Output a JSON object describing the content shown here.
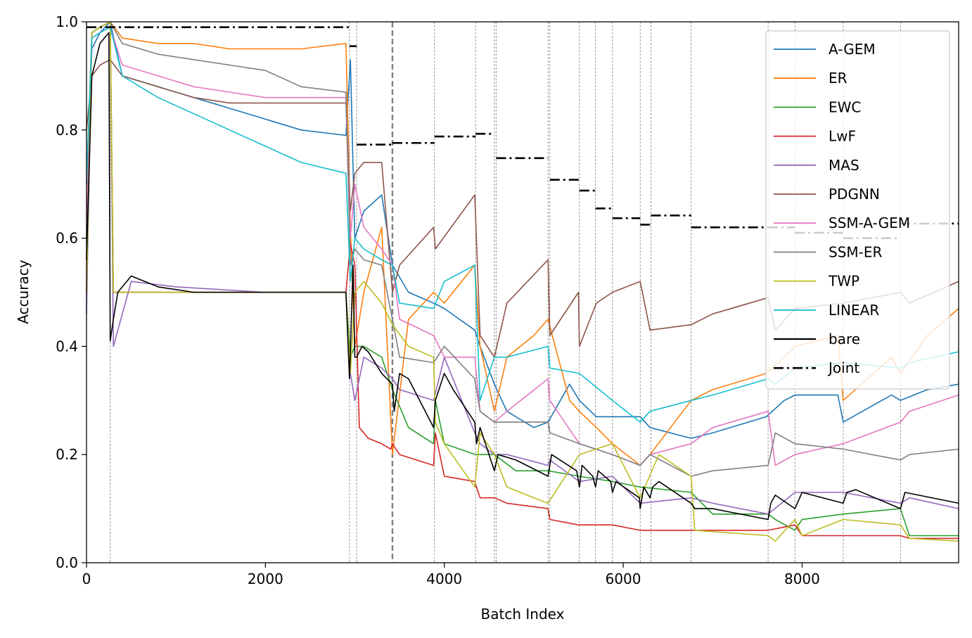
{
  "chart_data": {
    "type": "line",
    "title": "",
    "xlabel": "Batch Index",
    "ylabel": "Accuracy",
    "xlim": [
      0,
      9750
    ],
    "ylim": [
      0.0,
      1.0
    ],
    "xticks": [
      0,
      2000,
      4000,
      6000,
      8000
    ],
    "xtick_labels": [
      "0",
      "2000",
      "4000",
      "6000",
      "8000"
    ],
    "yticks": [
      0.0,
      0.2,
      0.4,
      0.6,
      0.8,
      1.0
    ],
    "ytick_labels": [
      "0.0",
      "0.2",
      "0.4",
      "0.6",
      "0.8",
      "1.0"
    ],
    "task_boundaries": [
      265,
      2940,
      3020,
      3890,
      4350,
      4560,
      4580,
      5160,
      5180,
      5510,
      5690,
      5880,
      6190,
      6310,
      6760,
      7620,
      7920,
      8460,
      9100
    ],
    "highlight_boundary": 3420,
    "legend_position": "upper right",
    "series": [
      {
        "name": "A-GEM",
        "color": "#1f77b4",
        "style": "solid",
        "x": [
          0,
          60,
          150,
          265,
          400,
          800,
          1200,
          1600,
          2000,
          2400,
          2900,
          2950,
          3000,
          3100,
          3300,
          3420,
          3600,
          3880,
          4000,
          4340,
          4400,
          4560,
          4700,
          5000,
          5160,
          5400,
          5510,
          5700,
          5880,
          6190,
          6300,
          6760,
          7000,
          7600,
          7800,
          7920,
          8400,
          8460,
          9000,
          9100,
          9400,
          9750
        ],
        "y": [
          0.6,
          0.95,
          0.98,
          1.0,
          0.9,
          0.88,
          0.86,
          0.84,
          0.82,
          0.8,
          0.79,
          0.93,
          0.6,
          0.65,
          0.68,
          0.55,
          0.5,
          0.48,
          0.47,
          0.43,
          0.4,
          0.33,
          0.28,
          0.25,
          0.26,
          0.33,
          0.3,
          0.27,
          0.27,
          0.27,
          0.25,
          0.23,
          0.24,
          0.27,
          0.3,
          0.31,
          0.31,
          0.26,
          0.31,
          0.3,
          0.32,
          0.33
        ]
      },
      {
        "name": "ER",
        "color": "#ff7f0e",
        "style": "solid",
        "x": [
          0,
          60,
          150,
          265,
          400,
          800,
          1200,
          1600,
          2000,
          2400,
          2900,
          2950,
          3000,
          3100,
          3300,
          3420,
          3600,
          3880,
          4000,
          4340,
          4400,
          4560,
          4700,
          5000,
          5160,
          5400,
          5510,
          5700,
          5880,
          6190,
          6300,
          6760,
          7000,
          7600,
          7800,
          7920,
          8400,
          8460,
          9000,
          9100,
          9400,
          9750
        ],
        "y": [
          0.6,
          0.98,
          0.99,
          1.0,
          0.97,
          0.96,
          0.96,
          0.95,
          0.95,
          0.95,
          0.96,
          0.62,
          0.4,
          0.5,
          0.62,
          0.2,
          0.45,
          0.5,
          0.48,
          0.55,
          0.4,
          0.28,
          0.38,
          0.42,
          0.45,
          0.3,
          0.28,
          0.25,
          0.22,
          0.18,
          0.2,
          0.3,
          0.32,
          0.35,
          0.38,
          0.4,
          0.42,
          0.3,
          0.38,
          0.35,
          0.42,
          0.47
        ]
      },
      {
        "name": "EWC",
        "color": "#2ca02c",
        "style": "solid",
        "x": [
          0,
          60,
          150,
          265,
          300,
          1000,
          2000,
          2900,
          2950,
          3000,
          3100,
          3300,
          3420,
          3600,
          3880,
          3900,
          4000,
          4350,
          4560,
          4800,
          5160,
          5510,
          5880,
          6190,
          6760,
          7000,
          7620,
          7700,
          7920,
          8000,
          8460,
          9100,
          9200,
          9750
        ],
        "y": [
          0.5,
          0.98,
          0.99,
          1.0,
          0.5,
          0.5,
          0.5,
          0.5,
          0.38,
          0.4,
          0.4,
          0.38,
          0.32,
          0.25,
          0.22,
          0.3,
          0.22,
          0.2,
          0.2,
          0.17,
          0.17,
          0.16,
          0.15,
          0.14,
          0.13,
          0.09,
          0.09,
          0.08,
          0.06,
          0.08,
          0.09,
          0.1,
          0.05,
          0.05
        ]
      },
      {
        "name": "LwF",
        "color": "#d62728",
        "style": "solid",
        "x": [
          0,
          60,
          150,
          265,
          300,
          1000,
          2000,
          2900,
          2950,
          3000,
          3050,
          3150,
          3300,
          3400,
          3420,
          3500,
          3880,
          3900,
          4000,
          4340,
          4400,
          4560,
          4700,
          5160,
          5180,
          5500,
          5700,
          5880,
          6190,
          6760,
          7620,
          7920,
          8000,
          8460,
          9100,
          9200,
          9750
        ],
        "y": [
          0.5,
          0.98,
          0.99,
          1.0,
          0.5,
          0.5,
          0.5,
          0.5,
          0.59,
          0.55,
          0.25,
          0.23,
          0.22,
          0.21,
          0.22,
          0.2,
          0.18,
          0.24,
          0.16,
          0.15,
          0.12,
          0.12,
          0.11,
          0.1,
          0.08,
          0.07,
          0.07,
          0.07,
          0.06,
          0.06,
          0.06,
          0.07,
          0.05,
          0.05,
          0.05,
          0.045,
          0.045
        ]
      },
      {
        "name": "MAS",
        "color": "#9467bd",
        "style": "solid",
        "x": [
          0,
          60,
          150,
          265,
          300,
          500,
          1000,
          2000,
          2900,
          2950,
          3000,
          3100,
          3300,
          3420,
          3500,
          3880,
          4000,
          4340,
          4400,
          4560,
          4700,
          5160,
          5180,
          5510,
          5880,
          6190,
          6760,
          7000,
          7620,
          7920,
          8460,
          9100,
          9200,
          9750
        ],
        "y": [
          0.46,
          0.98,
          0.99,
          1.0,
          0.4,
          0.52,
          0.51,
          0.5,
          0.5,
          0.35,
          0.3,
          0.38,
          0.36,
          0.34,
          0.32,
          0.3,
          0.38,
          0.24,
          0.22,
          0.2,
          0.2,
          0.18,
          0.19,
          0.15,
          0.16,
          0.11,
          0.12,
          0.11,
          0.09,
          0.13,
          0.13,
          0.11,
          0.12,
          0.1
        ]
      },
      {
        "name": "PDGNN",
        "color": "#8c564b",
        "style": "solid",
        "x": [
          0,
          60,
          150,
          265,
          400,
          800,
          1200,
          1600,
          2000,
          2400,
          2900,
          2950,
          3000,
          3100,
          3300,
          3420,
          3500,
          3880,
          3900,
          4340,
          4400,
          4560,
          4700,
          5160,
          5180,
          5500,
          5510,
          5700,
          5880,
          6190,
          6300,
          6760,
          7000,
          7620,
          7700,
          7920,
          8460,
          9100,
          9200,
          9750
        ],
        "y": [
          0.8,
          0.9,
          0.92,
          0.93,
          0.9,
          0.88,
          0.86,
          0.85,
          0.85,
          0.85,
          0.85,
          0.65,
          0.72,
          0.74,
          0.74,
          0.5,
          0.55,
          0.62,
          0.58,
          0.68,
          0.42,
          0.38,
          0.48,
          0.56,
          0.42,
          0.5,
          0.4,
          0.48,
          0.5,
          0.52,
          0.43,
          0.44,
          0.46,
          0.49,
          0.43,
          0.47,
          0.48,
          0.5,
          0.48,
          0.52
        ]
      },
      {
        "name": "SSM-A-GEM",
        "color": "#e377c2",
        "style": "solid",
        "x": [
          0,
          60,
          150,
          265,
          400,
          800,
          1200,
          1600,
          2000,
          2400,
          2900,
          2950,
          3000,
          3100,
          3300,
          3420,
          3500,
          3880,
          4000,
          4340,
          4400,
          4560,
          4700,
          5160,
          5180,
          5510,
          5880,
          6190,
          6300,
          6760,
          7000,
          7620,
          7700,
          7920,
          8460,
          9100,
          9200,
          9750
        ],
        "y": [
          0.6,
          0.97,
          0.98,
          0.99,
          0.92,
          0.9,
          0.88,
          0.87,
          0.86,
          0.86,
          0.86,
          0.6,
          0.7,
          0.62,
          0.58,
          0.55,
          0.45,
          0.42,
          0.38,
          0.38,
          0.28,
          0.26,
          0.28,
          0.34,
          0.3,
          0.22,
          0.2,
          0.18,
          0.2,
          0.22,
          0.25,
          0.28,
          0.18,
          0.2,
          0.22,
          0.26,
          0.28,
          0.31
        ]
      },
      {
        "name": "SSM-ER",
        "color": "#7f7f7f",
        "style": "solid",
        "x": [
          0,
          60,
          150,
          265,
          400,
          800,
          1200,
          1600,
          2000,
          2400,
          2900,
          2950,
          3000,
          3100,
          3300,
          3420,
          3500,
          3880,
          4000,
          4340,
          4400,
          4560,
          4700,
          5160,
          5180,
          5510,
          5880,
          6190,
          6300,
          6760,
          7000,
          7620,
          7700,
          7920,
          8460,
          9100,
          9200,
          9750
        ],
        "y": [
          0.7,
          0.98,
          0.99,
          1.0,
          0.96,
          0.94,
          0.93,
          0.92,
          0.91,
          0.88,
          0.87,
          0.55,
          0.58,
          0.56,
          0.55,
          0.45,
          0.38,
          0.37,
          0.4,
          0.34,
          0.28,
          0.26,
          0.26,
          0.26,
          0.24,
          0.22,
          0.2,
          0.18,
          0.2,
          0.16,
          0.17,
          0.18,
          0.24,
          0.22,
          0.21,
          0.19,
          0.2,
          0.21
        ]
      },
      {
        "name": "TWP",
        "color": "#bcbd22",
        "style": "solid",
        "x": [
          0,
          60,
          150,
          265,
          300,
          1000,
          2000,
          2900,
          2950,
          3000,
          3100,
          3300,
          3420,
          3600,
          3880,
          3900,
          4000,
          4340,
          4400,
          4560,
          4700,
          5000,
          5160,
          5510,
          5880,
          6190,
          6400,
          6760,
          6800,
          7620,
          7700,
          7920,
          8000,
          8460,
          9100,
          9200,
          9750
        ],
        "y": [
          0.5,
          0.98,
          0.99,
          1.0,
          0.5,
          0.5,
          0.5,
          0.5,
          0.35,
          0.5,
          0.52,
          0.48,
          0.44,
          0.4,
          0.38,
          0.26,
          0.22,
          0.14,
          0.24,
          0.2,
          0.14,
          0.12,
          0.11,
          0.2,
          0.22,
          0.12,
          0.2,
          0.16,
          0.06,
          0.05,
          0.04,
          0.08,
          0.05,
          0.08,
          0.07,
          0.045,
          0.04
        ]
      },
      {
        "name": "LINEAR",
        "color": "#17becf",
        "style": "solid",
        "x": [
          0,
          60,
          150,
          265,
          400,
          800,
          1200,
          1600,
          2000,
          2400,
          2900,
          2950,
          3000,
          3100,
          3300,
          3420,
          3500,
          3880,
          4000,
          4340,
          4400,
          4560,
          4700,
          5160,
          5180,
          5510,
          5880,
          6190,
          6300,
          6760,
          7000,
          7620,
          7700,
          7920,
          8460,
          9100,
          9200,
          9750
        ],
        "y": [
          0.7,
          0.97,
          0.98,
          0.99,
          0.9,
          0.86,
          0.83,
          0.8,
          0.77,
          0.74,
          0.72,
          0.52,
          0.6,
          0.58,
          0.56,
          0.55,
          0.48,
          0.47,
          0.52,
          0.55,
          0.3,
          0.38,
          0.38,
          0.4,
          0.36,
          0.35,
          0.3,
          0.26,
          0.28,
          0.3,
          0.31,
          0.34,
          0.33,
          0.36,
          0.37,
          0.36,
          0.37,
          0.39
        ]
      },
      {
        "name": "bare",
        "color": "#000000",
        "style": "solid",
        "x": [
          0,
          60,
          150,
          250,
          265,
          300,
          350,
          500,
          800,
          1200,
          2000,
          2900,
          2940,
          2980,
          3000,
          3020,
          3080,
          3150,
          3300,
          3420,
          3440,
          3500,
          3600,
          3880,
          3900,
          4000,
          4100,
          4340,
          4360,
          4400,
          4560,
          4600,
          4800,
          5160,
          5200,
          5480,
          5510,
          5540,
          5660,
          5690,
          5720,
          5860,
          5880,
          5920,
          6180,
          6190,
          6230,
          6300,
          6330,
          6400,
          6760,
          6800,
          7000,
          7620,
          7650,
          7700,
          7920,
          8000,
          8460,
          8500,
          8600,
          9100,
          9150,
          9750
        ],
        "y": [
          0.56,
          0.9,
          0.96,
          0.98,
          0.41,
          0.45,
          0.5,
          0.53,
          0.51,
          0.5,
          0.5,
          0.5,
          0.34,
          0.55,
          0.38,
          0.38,
          0.4,
          0.39,
          0.35,
          0.33,
          0.28,
          0.35,
          0.34,
          0.25,
          0.3,
          0.35,
          0.32,
          0.26,
          0.22,
          0.25,
          0.17,
          0.2,
          0.19,
          0.16,
          0.2,
          0.17,
          0.14,
          0.18,
          0.16,
          0.14,
          0.17,
          0.15,
          0.13,
          0.15,
          0.12,
          0.1,
          0.14,
          0.12,
          0.14,
          0.15,
          0.11,
          0.1,
          0.1,
          0.08,
          0.11,
          0.125,
          0.1,
          0.13,
          0.11,
          0.13,
          0.135,
          0.1,
          0.13,
          0.11
        ]
      },
      {
        "name": "Joint",
        "color": "#000000",
        "style": "dashdot",
        "segments": [
          {
            "x": [
              0,
              2940
            ],
            "y": 0.99
          },
          {
            "x": [
              2940,
              3020
            ],
            "y": 0.955
          },
          {
            "x": [
              3020,
              3420
            ],
            "y": 0.773
          },
          {
            "x": [
              3420,
              3890
            ],
            "y": 0.776
          },
          {
            "x": [
              3890,
              4350
            ],
            "y": 0.788
          },
          {
            "x": [
              4350,
              4560
            ],
            "y": 0.793
          },
          {
            "x": [
              4580,
              5160
            ],
            "y": 0.748
          },
          {
            "x": [
              5180,
              5510
            ],
            "y": 0.708
          },
          {
            "x": [
              5510,
              5690
            ],
            "y": 0.688
          },
          {
            "x": [
              5690,
              5880
            ],
            "y": 0.655
          },
          {
            "x": [
              5880,
              6190
            ],
            "y": 0.637
          },
          {
            "x": [
              6190,
              6310
            ],
            "y": 0.625
          },
          {
            "x": [
              6310,
              6760
            ],
            "y": 0.642
          },
          {
            "x": [
              6760,
              7620
            ],
            "y": 0.62
          },
          {
            "x": [
              7620,
              7920
            ],
            "y": 0.62
          },
          {
            "x": [
              7920,
              8460
            ],
            "y": 0.61
          },
          {
            "x": [
              8460,
              9100
            ],
            "y": 0.6
          },
          {
            "x": [
              9100,
              9750
            ],
            "y": 0.627
          }
        ]
      }
    ]
  }
}
